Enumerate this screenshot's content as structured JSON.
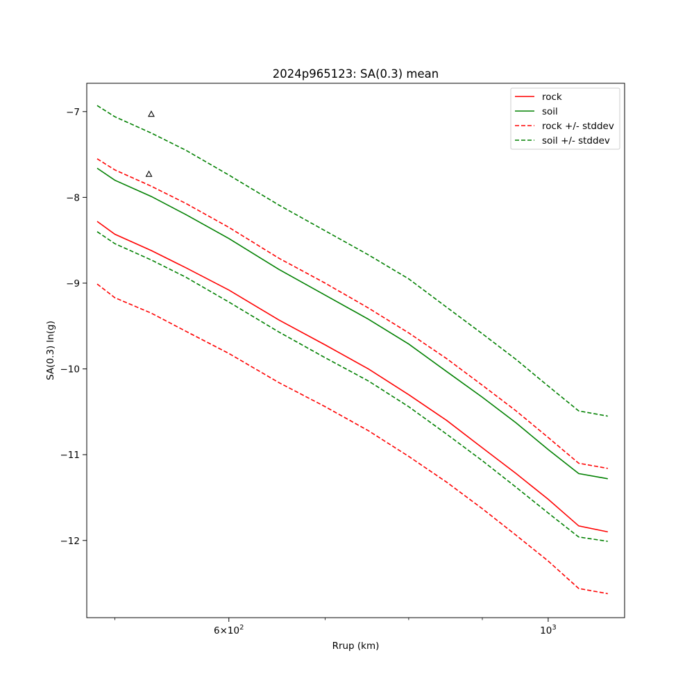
{
  "chart_data": {
    "type": "line",
    "title": "2024p965123: SA(0.3) mean",
    "xlabel": "Rrup (km)",
    "ylabel": "SA(0.3) ln(g)",
    "xscale": "log",
    "xlim": [
      478,
      1130
    ],
    "ylim": [
      -12.9,
      -6.67
    ],
    "x_ticks": [
      {
        "value": 600,
        "label_base": "6",
        "label_exp": "2",
        "label": "6×10^2"
      },
      {
        "value": 1000,
        "label_base": "10",
        "label_exp": "3",
        "label": "10^3"
      }
    ],
    "x_minor_ticks": [
      500,
      700,
      800,
      900
    ],
    "y_ticks": [
      {
        "value": -7,
        "label": "−7"
      },
      {
        "value": -8,
        "label": "−8"
      },
      {
        "value": -9,
        "label": "−9"
      },
      {
        "value": -10,
        "label": "−10"
      },
      {
        "value": -11,
        "label": "−11"
      },
      {
        "value": -12,
        "label": "−12"
      }
    ],
    "grid": false,
    "legend_position": "top-right",
    "x": [
      486,
      500,
      530,
      560,
      600,
      650,
      700,
      750,
      800,
      850,
      900,
      950,
      1000,
      1050,
      1100
    ],
    "series": [
      {
        "name": "rock",
        "color": "#ff0000",
        "dash": "solid",
        "values": [
          -8.28,
          -8.43,
          -8.62,
          -8.82,
          -9.08,
          -9.43,
          -9.72,
          -10.0,
          -10.3,
          -10.6,
          -10.92,
          -11.22,
          -11.52,
          -11.83,
          -11.9
        ]
      },
      {
        "name": "soil",
        "color": "#008000",
        "dash": "solid",
        "values": [
          -7.66,
          -7.8,
          -7.99,
          -8.2,
          -8.48,
          -8.84,
          -9.14,
          -9.42,
          -9.71,
          -10.03,
          -10.33,
          -10.63,
          -10.94,
          -11.22,
          -11.28
        ]
      },
      {
        "name": "rock +/- stddev",
        "color": "#ff0000",
        "dash": "dashed",
        "values": [
          -7.55,
          -7.68,
          -7.87,
          -8.07,
          -8.35,
          -8.71,
          -9.0,
          -9.29,
          -9.58,
          -9.88,
          -10.19,
          -10.49,
          -10.8,
          -11.1,
          -11.16
        ],
        "lower": [
          -9.01,
          -9.17,
          -9.35,
          -9.56,
          -9.82,
          -10.16,
          -10.44,
          -10.72,
          -11.02,
          -11.32,
          -11.63,
          -11.94,
          -12.24,
          -12.56,
          -12.62
        ]
      },
      {
        "name": "soil +/- stddev",
        "color": "#008000",
        "dash": "dashed",
        "values": [
          -6.93,
          -7.06,
          -7.25,
          -7.45,
          -7.74,
          -8.09,
          -8.39,
          -8.67,
          -8.95,
          -9.28,
          -9.59,
          -9.89,
          -10.2,
          -10.49,
          -10.55
        ],
        "lower": [
          -8.4,
          -8.54,
          -8.73,
          -8.93,
          -9.22,
          -9.57,
          -9.87,
          -10.14,
          -10.44,
          -10.76,
          -11.07,
          -11.38,
          -11.68,
          -11.96,
          -12.01
        ]
      }
    ],
    "observations": [
      {
        "x": 530,
        "y": -7.03,
        "marker": "triangle-open",
        "color": "#000000"
      },
      {
        "x": 528,
        "y": -7.73,
        "marker": "triangle-open",
        "color": "#000000"
      }
    ]
  }
}
